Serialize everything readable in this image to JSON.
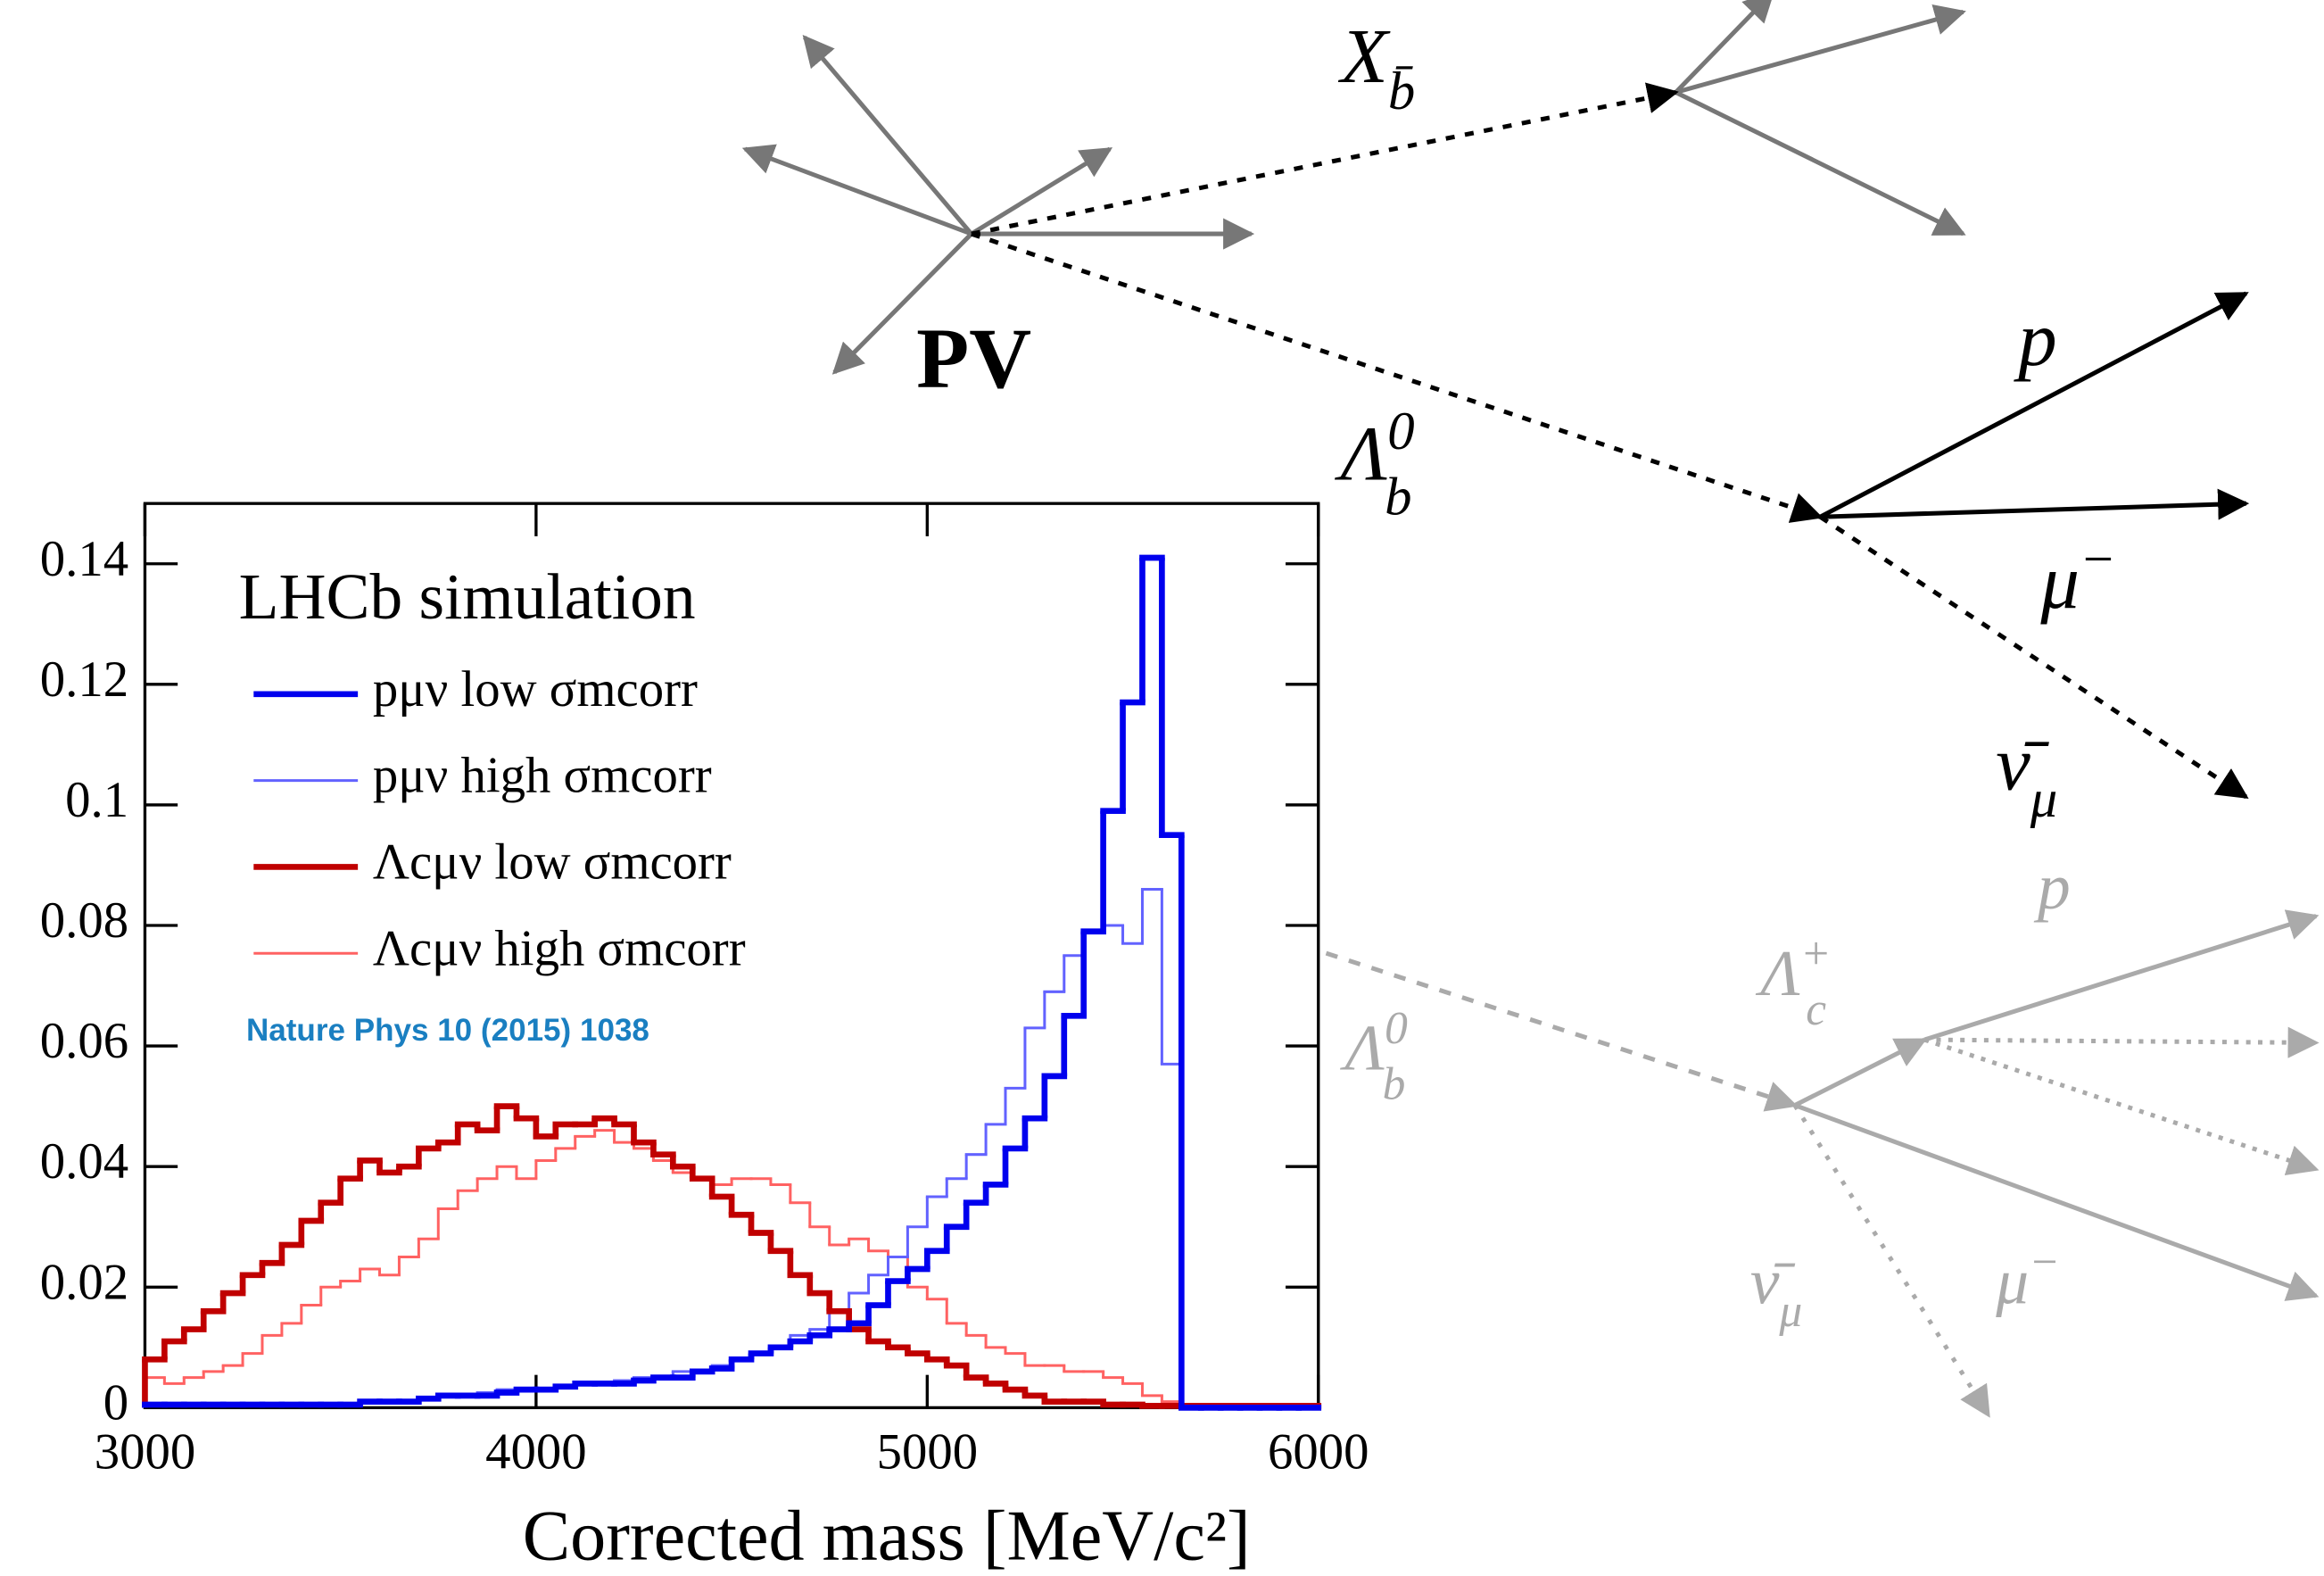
{
  "chart_data": {
    "type": "histogram",
    "legend_title": "LHCb simulation",
    "annotation": "Nature Phys 10 (2015) 1038",
    "xlabel": "Corrected mass [MeV/c²]",
    "bins": [
      3000,
      3050,
      3100,
      3150,
      3200,
      3250,
      3300,
      3350,
      3400,
      3450,
      3500,
      3550,
      3600,
      3650,
      3700,
      3750,
      3800,
      3850,
      3900,
      3950,
      4000,
      4050,
      4100,
      4150,
      4200,
      4250,
      4300,
      4350,
      4400,
      4450,
      4500,
      4550,
      4600,
      4650,
      4700,
      4750,
      4800,
      4850,
      4900,
      4950,
      5000,
      5050,
      5100,
      5150,
      5200,
      5250,
      5300,
      5350,
      5400,
      5450,
      5500,
      5550,
      5600,
      5650,
      5700,
      5750,
      5800,
      5850,
      5900,
      5950,
      6000
    ],
    "xlim": [
      3000,
      6000
    ],
    "xticks": [
      3000,
      4000,
      5000,
      6000
    ],
    "ylim": [
      0,
      0.15
    ],
    "yticks": [
      0,
      0.02,
      0.04,
      0.06,
      0.08,
      0.1,
      0.12,
      0.14
    ],
    "series": [
      {
        "name": "pμν low σmcorr",
        "color": "#0000ee",
        "width": 4,
        "values": [
          0.0005,
          0.0005,
          0.0005,
          0.0005,
          0.0005,
          0.0005,
          0.0005,
          0.0005,
          0.0005,
          0.0005,
          0.0005,
          0.001,
          0.001,
          0.001,
          0.0015,
          0.002,
          0.002,
          0.002,
          0.0025,
          0.003,
          0.003,
          0.0035,
          0.004,
          0.004,
          0.004,
          0.0045,
          0.005,
          0.005,
          0.006,
          0.0065,
          0.008,
          0.009,
          0.01,
          0.011,
          0.012,
          0.013,
          0.014,
          0.017,
          0.021,
          0.023,
          0.026,
          0.03,
          0.034,
          0.037,
          0.043,
          0.048,
          0.055,
          0.065,
          0.079,
          0.099,
          0.117,
          0.141,
          0.095,
          0,
          0,
          0,
          0,
          0,
          0,
          0
        ]
      },
      {
        "name": "pμν high σmcorr",
        "color": "#6262ff",
        "width": 1.8,
        "values": [
          0.0005,
          0.0005,
          0.0005,
          0.0005,
          0.0005,
          0.0005,
          0.0005,
          0.0005,
          0.0005,
          0.0005,
          0.0005,
          0.001,
          0.001,
          0.001,
          0.0015,
          0.002,
          0.002,
          0.0025,
          0.003,
          0.003,
          0.003,
          0.0035,
          0.004,
          0.004,
          0.0045,
          0.005,
          0.005,
          0.006,
          0.006,
          0.007,
          0.008,
          0.009,
          0.01,
          0.012,
          0.013,
          0.016,
          0.019,
          0.022,
          0.025,
          0.03,
          0.035,
          0.038,
          0.042,
          0.047,
          0.053,
          0.063,
          0.069,
          0.075,
          0.079,
          0.08,
          0.077,
          0.086,
          0.057,
          0,
          0,
          0,
          0,
          0,
          0,
          0
        ]
      },
      {
        "name": "Λcμν low σmcorr",
        "color": "#c00000",
        "width": 4,
        "values": [
          0.008,
          0.011,
          0.013,
          0.016,
          0.019,
          0.022,
          0.024,
          0.027,
          0.031,
          0.034,
          0.038,
          0.041,
          0.039,
          0.04,
          0.043,
          0.044,
          0.047,
          0.046,
          0.05,
          0.048,
          0.045,
          0.047,
          0.047,
          0.048,
          0.047,
          0.044,
          0.042,
          0.04,
          0.038,
          0.035,
          0.032,
          0.029,
          0.026,
          0.022,
          0.019,
          0.016,
          0.013,
          0.011,
          0.01,
          0.009,
          0.008,
          0.007,
          0.005,
          0.004,
          0.003,
          0.002,
          0.001,
          0.001,
          0.001,
          0.0005,
          0.0005,
          0.0003,
          0.0003,
          0.0003,
          0.0003,
          0.0003,
          0.0003,
          0.0003,
          0.0003,
          0.0003
        ]
      },
      {
        "name": "Λcμν high σmcorr",
        "color": "#ff6262",
        "width": 1.8,
        "values": [
          0.005,
          0.004,
          0.005,
          0.006,
          0.007,
          0.009,
          0.012,
          0.014,
          0.017,
          0.02,
          0.021,
          0.023,
          0.022,
          0.025,
          0.028,
          0.033,
          0.036,
          0.038,
          0.04,
          0.038,
          0.041,
          0.043,
          0.045,
          0.046,
          0.044,
          0.043,
          0.041,
          0.039,
          0.038,
          0.037,
          0.038,
          0.038,
          0.037,
          0.034,
          0.03,
          0.027,
          0.028,
          0.026,
          0.025,
          0.02,
          0.018,
          0.014,
          0.012,
          0.01,
          0.009,
          0.007,
          0.007,
          0.006,
          0.006,
          0.005,
          0.004,
          0.002,
          0.001,
          0.0005,
          0.0003,
          0.0003,
          0.0003,
          0.0003,
          0.0003,
          0.0003
        ]
      }
    ]
  },
  "diagram": {
    "labels": [
      {
        "text": "X",
        "sub": "b̄"
      },
      {
        "text": "PV"
      },
      {
        "text": "Λ",
        "sub": "b",
        "sup": "0"
      },
      {
        "text": "p"
      },
      {
        "text": "μ",
        "sup": "−"
      },
      {
        "text": "ν̄",
        "sub": "μ"
      },
      {
        "text": "p"
      },
      {
        "text": "Λ",
        "sub": "c",
        "sup": "+"
      },
      {
        "text": "Λ",
        "sub": "b",
        "sup": "0"
      },
      {
        "text": "ν̄",
        "sub": "μ"
      },
      {
        "text": "μ",
        "sup": "−"
      }
    ]
  }
}
